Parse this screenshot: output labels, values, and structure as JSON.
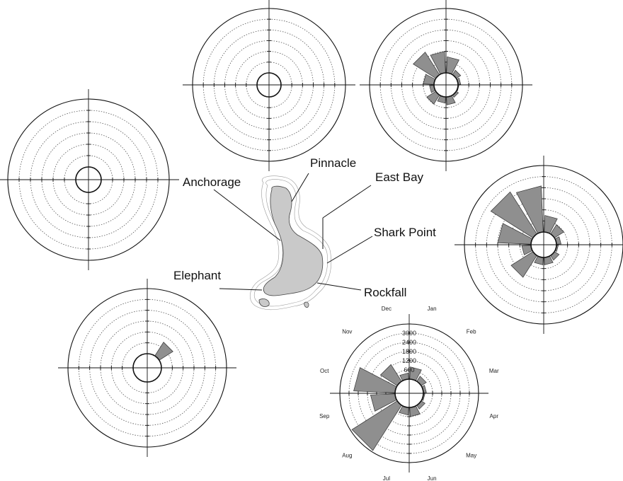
{
  "map": {
    "sites": [
      {
        "label": "Pinnacle"
      },
      {
        "label": "East Bay"
      },
      {
        "label": "Anchorage"
      },
      {
        "label": "Shark Point"
      },
      {
        "label": "Elephant"
      },
      {
        "label": "Rockfall"
      }
    ]
  },
  "chart_data": {
    "type": "polar-bar",
    "months": [
      "Jan",
      "Feb",
      "Mar",
      "Apr",
      "May",
      "Jun",
      "Jul",
      "Aug",
      "Sep",
      "Oct",
      "Nov",
      "Dec"
    ],
    "radial_ticks": [
      600,
      1200,
      1800,
      2400,
      3000
    ],
    "r_max": 3600,
    "charts": [
      {
        "site": "Pinnacle",
        "values": [
          0,
          0,
          0,
          0,
          0,
          0,
          0,
          0,
          0,
          0,
          0,
          0
        ]
      },
      {
        "site": "East Bay",
        "values": [
          900,
          300,
          150,
          50,
          150,
          450,
          350,
          600,
          250,
          600,
          1500,
          1200
        ]
      },
      {
        "site": "Anchorage",
        "values": [
          0,
          0,
          0,
          0,
          0,
          0,
          0,
          0,
          0,
          0,
          0,
          0
        ]
      },
      {
        "site": "Shark Point",
        "values": [
          900,
          600,
          250,
          100,
          300,
          400,
          400,
          1400,
          500,
          1800,
          2700,
          2500
        ]
      },
      {
        "site": "Elephant",
        "values": [
          0,
          900,
          0,
          0,
          0,
          0,
          0,
          0,
          0,
          0,
          0,
          0
        ]
      },
      {
        "site": "Rockfall",
        "values": [
          800,
          400,
          200,
          100,
          300,
          600,
          500,
          3500,
          1600,
          2700,
          1300,
          400
        ]
      }
    ]
  }
}
